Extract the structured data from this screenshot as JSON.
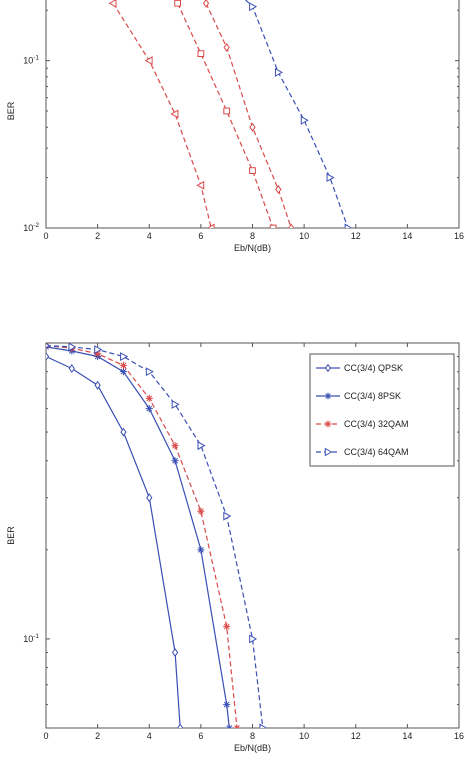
{
  "chart_data": [
    {
      "type": "line",
      "title": "",
      "xlabel": "Eb/N(dB)",
      "ylabel": "BER",
      "xlim": [
        0,
        16
      ],
      "ylim": [
        0.01,
        0.25
      ],
      "yscale": "log",
      "x_ticks": [
        "0",
        "2",
        "4",
        "6",
        "8",
        "10",
        "12",
        "14",
        "16"
      ],
      "y_ticks": [
        {
          "label": "10",
          "exp": "-1",
          "value": 0.1
        },
        {
          "label": "10",
          "exp": "-2",
          "value": 0.01
        }
      ],
      "grid": false,
      "legend": "none",
      "series": [
        {
          "color": "#d94a4a",
          "line": "dashed",
          "marker": "triangle-left",
          "x": [
            2.6,
            4,
            5,
            6,
            6.4
          ],
          "y": [
            0.22,
            0.1,
            0.048,
            0.018,
            0.01
          ]
        },
        {
          "color": "#d94a4a",
          "line": "dashed",
          "marker": "square",
          "x": [
            5.1,
            6,
            7,
            8,
            8.8
          ],
          "y": [
            0.22,
            0.11,
            0.05,
            0.022,
            0.01
          ]
        },
        {
          "color": "#d94a4a",
          "line": "dashed",
          "marker": "diamond",
          "x": [
            6.2,
            7,
            8,
            9,
            9.5
          ],
          "y": [
            0.22,
            0.12,
            0.04,
            0.017,
            0.01
          ]
        },
        {
          "color": "#3a4fb5",
          "line": "dashed",
          "marker": "triangle-right",
          "x": [
            7.5,
            8,
            9,
            10,
            11,
            11.7
          ],
          "y": [
            0.25,
            0.21,
            0.085,
            0.044,
            0.02,
            0.01
          ]
        }
      ]
    },
    {
      "type": "line",
      "title": "",
      "xlabel": "Eb/N(dB)",
      "ylabel": "BER",
      "xlim": [
        0,
        16
      ],
      "ylim": [
        0.05,
        1
      ],
      "yscale": "log",
      "x_ticks": [
        "0",
        "2",
        "4",
        "6",
        "8",
        "10",
        "12",
        "14",
        "16"
      ],
      "y_ticks": [
        {
          "label": "10",
          "exp": "-1",
          "value": 0.1
        }
      ],
      "grid": false,
      "legend": "top-right",
      "series": [
        {
          "name": "CC(3/4) QPSK",
          "color": "#3a4fb5",
          "line": "solid",
          "marker": "diamond",
          "x": [
            0,
            1,
            2,
            3,
            4,
            5,
            5.2
          ],
          "y": [
            0.9,
            0.82,
            0.72,
            0.5,
            0.3,
            0.09,
            0.05
          ]
        },
        {
          "name": "CC(3/4) 8PSK",
          "color": "#3a4fb5",
          "line": "solid",
          "marker": "star",
          "x": [
            0,
            1,
            2,
            3,
            4,
            5,
            6,
            7,
            7.1
          ],
          "y": [
            0.97,
            0.94,
            0.9,
            0.8,
            0.6,
            0.4,
            0.2,
            0.06,
            0.05
          ]
        },
        {
          "name": "CC(3/4) 32QAM",
          "color": "#d94a4a",
          "line": "dashed",
          "marker": "star",
          "x": [
            0,
            1,
            2,
            3,
            4,
            5,
            6,
            7,
            7.4
          ],
          "y": [
            0.98,
            0.96,
            0.92,
            0.84,
            0.65,
            0.45,
            0.27,
            0.11,
            0.05
          ]
        },
        {
          "name": "CC(3/4) 64QAM",
          "color": "#3a4fb5",
          "line": "dashed",
          "marker": "triangle-right",
          "x": [
            0,
            1,
            2,
            3,
            4,
            5,
            6,
            7,
            8,
            8.4
          ],
          "y": [
            0.98,
            0.97,
            0.95,
            0.9,
            0.8,
            0.62,
            0.45,
            0.26,
            0.1,
            0.05
          ]
        }
      ]
    }
  ]
}
